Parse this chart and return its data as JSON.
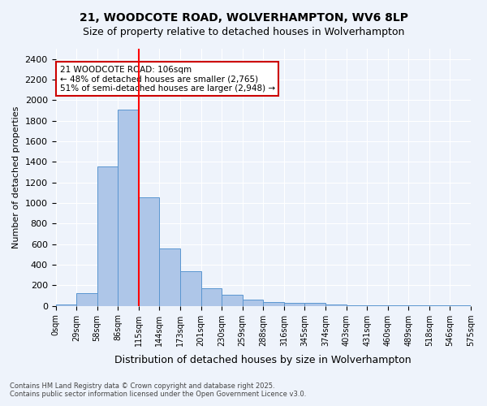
{
  "title1": "21, WOODCOTE ROAD, WOLVERHAMPTON, WV6 8LP",
  "title2": "Size of property relative to detached houses in Wolverhampton",
  "xlabel": "Distribution of detached houses by size in Wolverhampton",
  "ylabel": "Number of detached properties",
  "bar_values": [
    10,
    125,
    1355,
    1910,
    1055,
    560,
    335,
    170,
    110,
    60,
    35,
    28,
    25,
    15,
    5,
    5,
    5,
    5,
    5,
    5
  ],
  "bin_labels": [
    "0sqm",
    "29sqm",
    "58sqm",
    "86sqm",
    "115sqm",
    "144sqm",
    "173sqm",
    "201sqm",
    "230sqm",
    "259sqm",
    "288sqm",
    "316sqm",
    "345sqm",
    "374sqm",
    "403sqm",
    "431sqm",
    "460sqm",
    "489sqm",
    "518sqm",
    "546sqm",
    "575sqm"
  ],
  "bar_color": "#aec6e8",
  "bar_edge_color": "#5a96d0",
  "red_line_x": 3.5,
  "annotation_title": "21 WOODCOTE ROAD: 106sqm",
  "annotation_line1": "← 48% of detached houses are smaller (2,765)",
  "annotation_line2": "51% of semi-detached houses are larger (2,948) →",
  "annotation_box_color": "#ffffff",
  "annotation_box_edge": "#cc0000",
  "ylim": [
    0,
    2500
  ],
  "yticks": [
    0,
    200,
    400,
    600,
    800,
    1000,
    1200,
    1400,
    1600,
    1800,
    2000,
    2200,
    2400
  ],
  "bg_color": "#eef3fb",
  "grid_color": "#ffffff",
  "footer1": "Contains HM Land Registry data © Crown copyright and database right 2025.",
  "footer2": "Contains public sector information licensed under the Open Government Licence v3.0."
}
